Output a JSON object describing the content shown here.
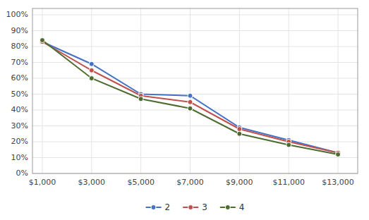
{
  "chart_data": {
    "type": "line",
    "x": [
      1000,
      3000,
      5000,
      7000,
      9000,
      11000,
      13000
    ],
    "xlim": [
      600,
      13800
    ],
    "xticks": [
      {
        "value": 1000,
        "label": "$1,000"
      },
      {
        "value": 3000,
        "label": "$3,000"
      },
      {
        "value": 5000,
        "label": "$5,000"
      },
      {
        "value": 7000,
        "label": "$7,000"
      },
      {
        "value": 9000,
        "label": "$9,000"
      },
      {
        "value": 11000,
        "label": "$11,000"
      },
      {
        "value": 13000,
        "label": "$13,000"
      }
    ],
    "ylim": [
      0.0,
      1.04
    ],
    "yticks": [
      {
        "value": 0.0,
        "label": "0%"
      },
      {
        "value": 0.1,
        "label": "10%"
      },
      {
        "value": 0.2,
        "label": "20%"
      },
      {
        "value": 0.3,
        "label": "30%"
      },
      {
        "value": 0.4,
        "label": "40%"
      },
      {
        "value": 0.5,
        "label": "50%"
      },
      {
        "value": 0.6,
        "label": "60%"
      },
      {
        "value": 0.7,
        "label": "70%"
      },
      {
        "value": 0.8,
        "label": "80%"
      },
      {
        "value": 0.9,
        "label": "90%"
      },
      {
        "value": 1.0,
        "label": "100%"
      }
    ],
    "series": [
      {
        "name": "2",
        "color": "#4472C4",
        "values": [
          0.83,
          0.69,
          0.5,
          0.49,
          0.29,
          0.21,
          0.13
        ]
      },
      {
        "name": "3",
        "color": "#C0504D",
        "values": [
          0.83,
          0.65,
          0.49,
          0.45,
          0.28,
          0.2,
          0.13
        ]
      },
      {
        "name": "4",
        "color": "#4D6B2E",
        "values": [
          0.84,
          0.6,
          0.47,
          0.41,
          0.25,
          0.18,
          0.12
        ]
      }
    ],
    "marker": "circle",
    "grid": true,
    "legend": "bottom"
  }
}
